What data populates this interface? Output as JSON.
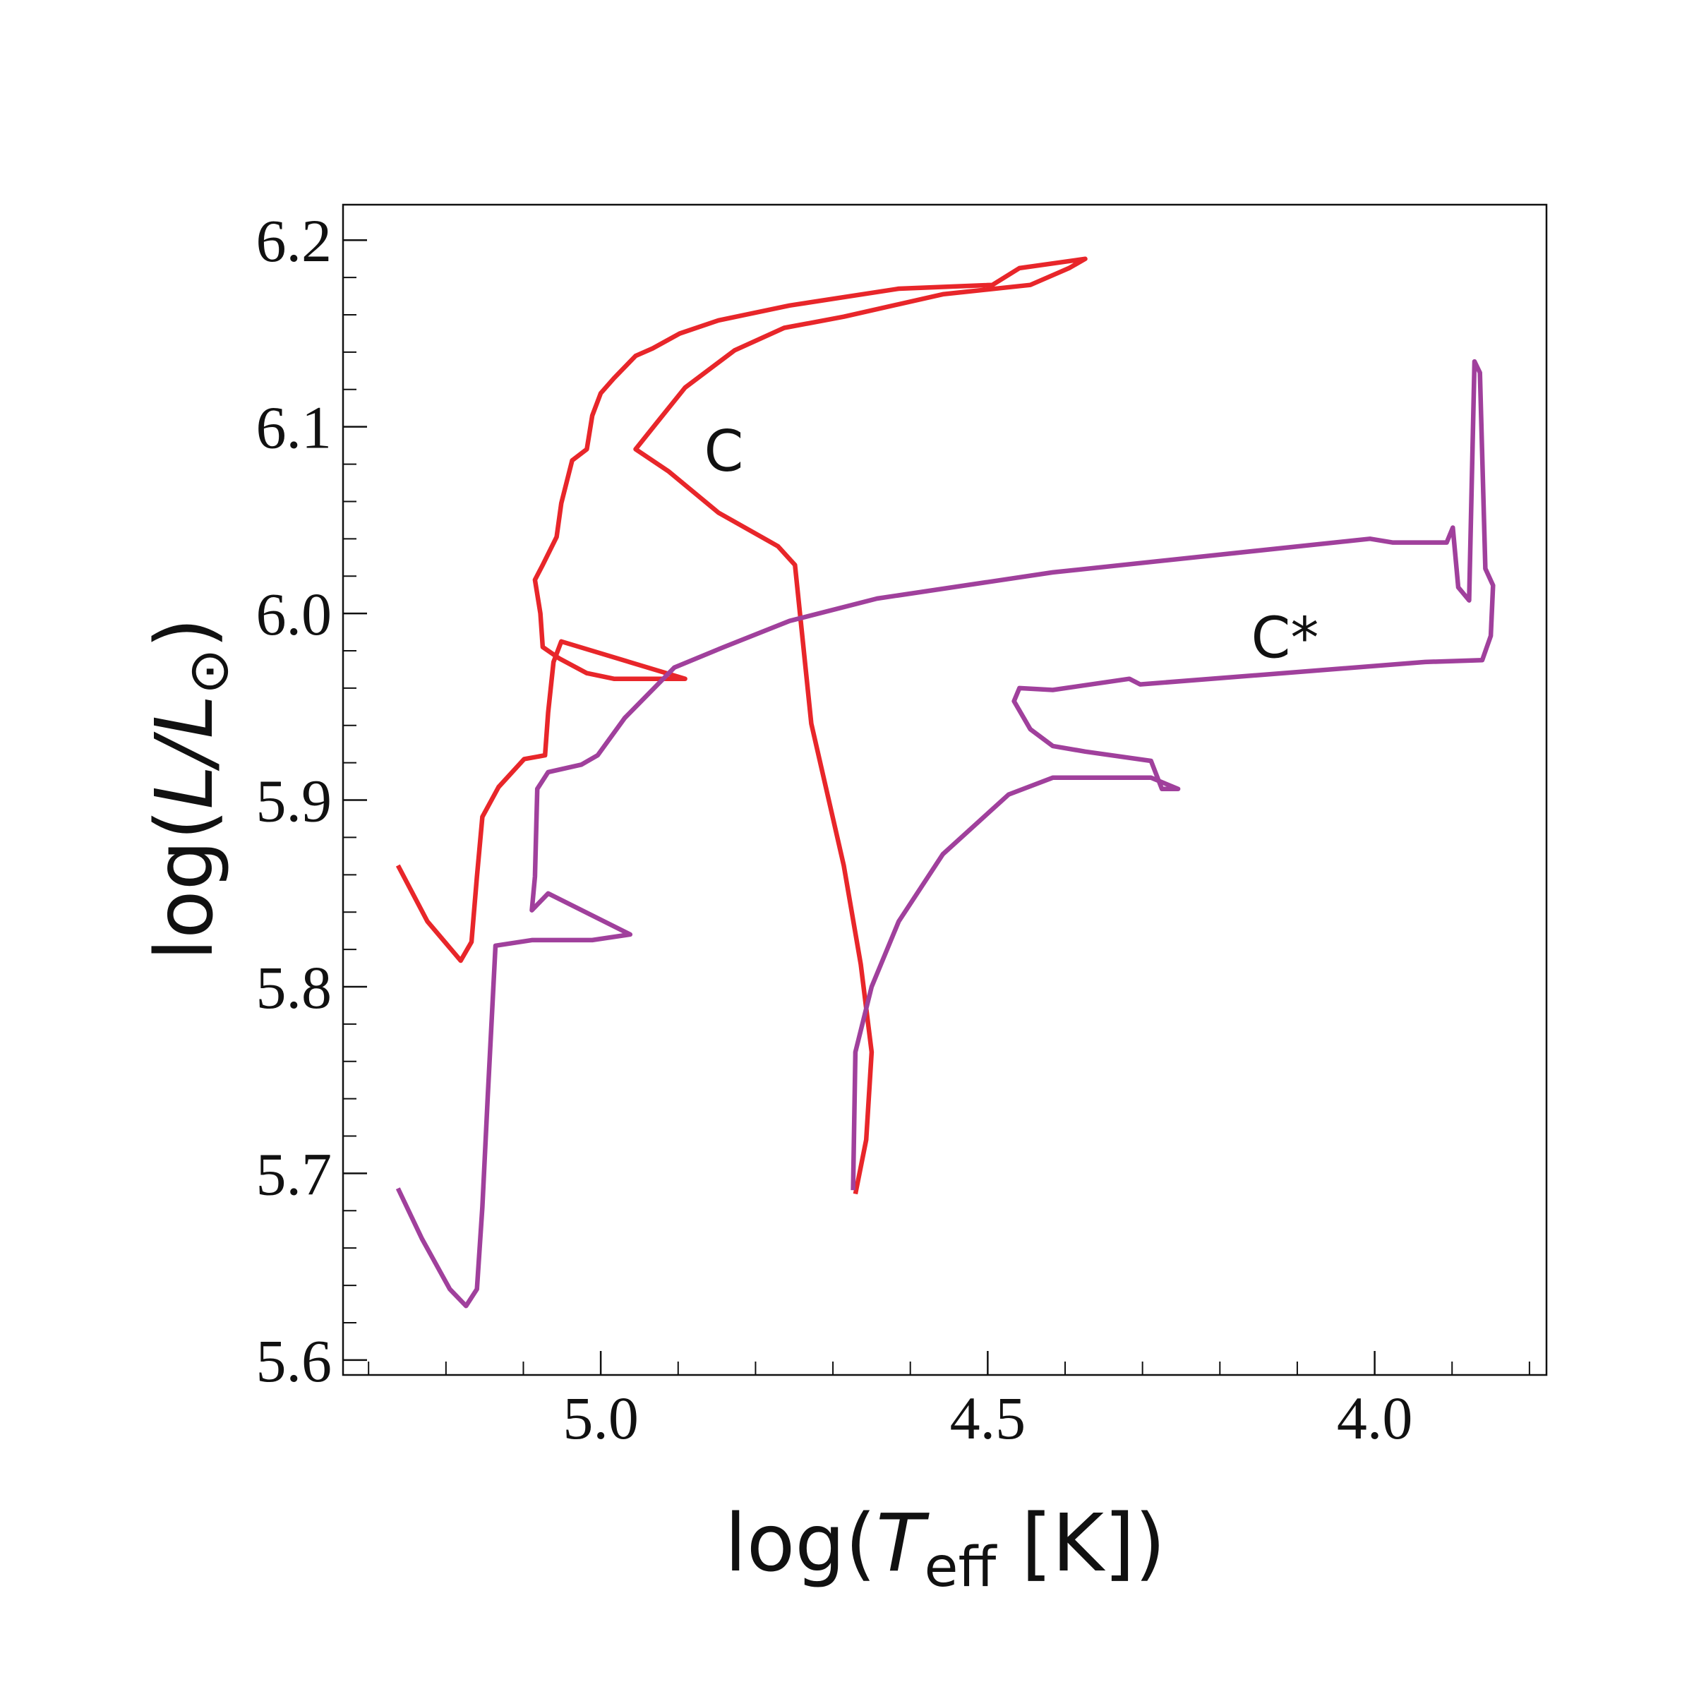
{
  "chart_data": {
    "type": "line",
    "xlabel": [
      "log(",
      "T",
      "eff",
      " [K])"
    ],
    "ylabel": [
      "log(",
      "L",
      "/",
      "L",
      "⊙",
      ")"
    ],
    "xlim": [
      5.333,
      3.778
    ],
    "ylim": [
      5.592,
      6.219
    ],
    "xticks": [
      {
        "value": 5,
        "label": "5.0"
      },
      4.5,
      {
        "value": 4,
        "label": "4.0"
      }
    ],
    "yticks": [
      5.6,
      5.7,
      5.8,
      5.9,
      {
        "value": 6,
        "label": "6.0"
      },
      6.1,
      6.2
    ],
    "xminorticks": [
      5.3,
      5.2,
      5.1,
      4.9,
      4.8,
      4.7,
      4.6,
      4.4,
      4.3,
      4.2,
      4.1,
      3.9,
      3.8
    ],
    "yminorticks": [
      5.62,
      5.64,
      5.66,
      5.68,
      5.72,
      5.74,
      5.76,
      5.78,
      5.82,
      5.84,
      5.86,
      5.88,
      5.92,
      5.94,
      5.96,
      5.98,
      6.02,
      6.04,
      6.06,
      6.08,
      6.12,
      6.14,
      6.16,
      6.18
    ],
    "series": [
      {
        "color": "#e8262a",
        "x": [
          5.262,
          5.224,
          5.181,
          5.167,
          5.16,
          5.153,
          5.132,
          5.099,
          5.072,
          5.068,
          5.061,
          5.051,
          4.891,
          4.983,
          5.018,
          5.054,
          5.075,
          5.078,
          5.085,
          5.075,
          5.057,
          5.051,
          5.037,
          5.018,
          5.011,
          5.0,
          4.983,
          4.955,
          4.933,
          4.898,
          4.848,
          4.756,
          4.615,
          4.494,
          4.459,
          4.374,
          4.395,
          4.445,
          4.558,
          4.686,
          4.763,
          4.827,
          4.891,
          4.926,
          4.955,
          4.912,
          4.848,
          4.771,
          4.749,
          4.728,
          4.686,
          4.664,
          4.65,
          4.657,
          4.671
        ],
        "values": [
          5.865,
          5.835,
          5.814,
          5.824,
          5.859,
          5.891,
          5.907,
          5.922,
          5.924,
          5.947,
          5.974,
          5.985,
          5.965,
          5.965,
          5.968,
          5.976,
          5.982,
          6.0,
          6.018,
          6.026,
          6.041,
          6.059,
          6.082,
          6.088,
          6.106,
          6.118,
          6.126,
          6.138,
          6.142,
          6.15,
          6.157,
          6.165,
          6.174,
          6.176,
          6.185,
          6.19,
          6.185,
          6.176,
          6.171,
          6.159,
          6.153,
          6.141,
          6.121,
          6.103,
          6.088,
          6.076,
          6.054,
          6.036,
          6.026,
          5.941,
          5.865,
          5.812,
          5.765,
          5.718,
          5.689
        ]
      },
      {
        "color": "#a0409c",
        "x": [
          5.262,
          5.231,
          5.195,
          5.174,
          5.16,
          5.153,
          5.146,
          5.136,
          5.089,
          5.011,
          4.962,
          5.068,
          5.089,
          5.085,
          5.082,
          5.068,
          5.025,
          5.004,
          4.969,
          4.905,
          4.841,
          4.756,
          4.643,
          4.416,
          4.006,
          3.977,
          3.907,
          3.899,
          3.892,
          3.878,
          3.871,
          3.864,
          3.857,
          3.847,
          3.85,
          3.861,
          3.935,
          4.303,
          4.317,
          4.416,
          4.459,
          4.466,
          4.445,
          4.416,
          4.374,
          4.289,
          4.275,
          4.254,
          4.289,
          4.416,
          4.473,
          4.558,
          4.615,
          4.65,
          4.671,
          4.674
        ],
        "values": [
          5.692,
          5.665,
          5.638,
          5.629,
          5.638,
          5.682,
          5.741,
          5.822,
          5.825,
          5.825,
          5.828,
          5.85,
          5.841,
          5.859,
          5.906,
          5.915,
          5.919,
          5.924,
          5.944,
          5.971,
          5.982,
          5.996,
          6.008,
          6.022,
          6.04,
          6.038,
          6.038,
          6.046,
          6.014,
          6.007,
          6.135,
          6.129,
          6.024,
          6.015,
          5.988,
          5.975,
          5.974,
          5.962,
          5.965,
          5.959,
          5.96,
          5.953,
          5.938,
          5.929,
          5.926,
          5.921,
          5.906,
          5.906,
          5.912,
          5.912,
          5.903,
          5.871,
          5.835,
          5.8,
          5.765,
          5.691
        ]
      }
    ],
    "annotations": [
      {
        "text": "C",
        "x": 4.841,
        "y": 6.087
      },
      {
        "text": "C*",
        "x": 4.116,
        "y": 5.987
      }
    ]
  }
}
